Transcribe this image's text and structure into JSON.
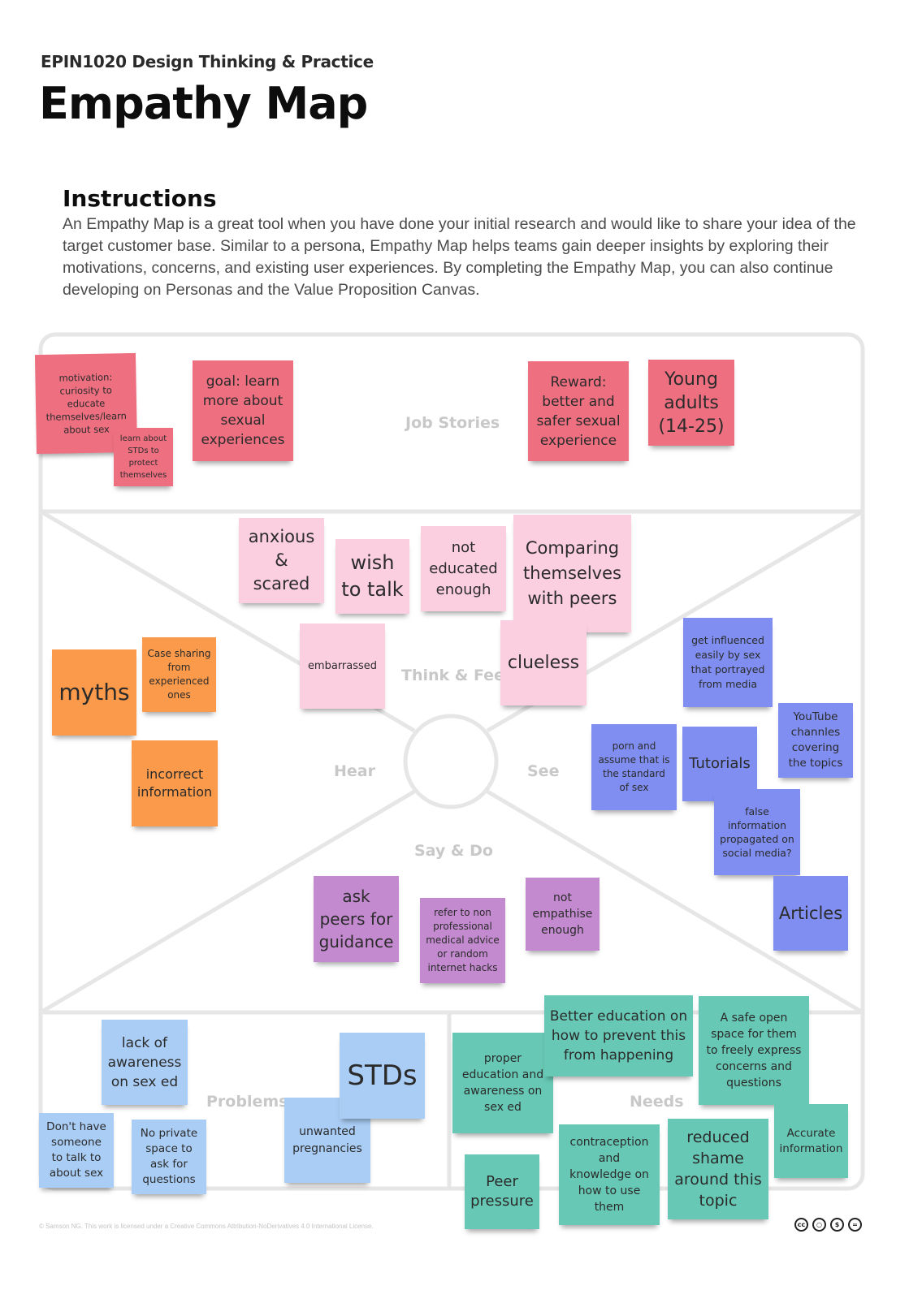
{
  "header": {
    "course": "EPIN1020 Design Thinking & Practice",
    "title": "Empathy Map"
  },
  "instructions": {
    "heading": "Instructions",
    "body": "An Empathy Map is a great tool when you have done your initial research and would like to share your idea of the target customer base. Similar to a persona, Empathy Map helps teams gain deeper insights by exploring their motivations, concerns, and existing user experiences. By completing the Empathy Map, you can also continue developing on Personas and the Value Proposition Canvas."
  },
  "sections": {
    "job_stories": "Job Stories",
    "think_feel": "Think & Feel",
    "hear": "Hear",
    "see": "See",
    "say_do": "Say & Do",
    "problems": "Problems",
    "needs": "Needs"
  },
  "notes": {
    "job_stories": [
      {
        "text": "motivation:\ncuriosity to\neducate\nthemselves/learn\nabout sex",
        "color": "#ee6f80"
      },
      {
        "text": "learn about\nSTDs to\nprotect\nthemselves",
        "color": "#ee6f80"
      },
      {
        "text": "goal: learn\nmore about\nsexual\nexperiences",
        "color": "#ee6f80"
      },
      {
        "text": "Reward:\nbetter and\nsafer sexual\nexperience",
        "color": "#ee6f80"
      },
      {
        "text": "Young\nadults\n(14-25)",
        "color": "#ee6f80"
      }
    ],
    "think_feel": [
      {
        "text": "anxious\n&\nscared",
        "color": "#fccfe0"
      },
      {
        "text": "wish\nto talk",
        "color": "#fccfe0"
      },
      {
        "text": "not\neducated\nenough",
        "color": "#fccfe0"
      },
      {
        "text": "Comparing\nthemselves\nwith peers",
        "color": "#fccfe0"
      },
      {
        "text": "embarrassed",
        "color": "#fccfe0"
      },
      {
        "text": "clueless",
        "color": "#fccfe0"
      }
    ],
    "hear": [
      {
        "text": "myths",
        "color": "#fb9a4a"
      },
      {
        "text": "Case sharing\nfrom\nexperienced\nones",
        "color": "#fb9a4a"
      },
      {
        "text": "incorrect\ninformation",
        "color": "#fb9a4a"
      }
    ],
    "see": [
      {
        "text": "get influenced\neasily by sex\nthat portrayed\nfrom media",
        "color": "#7f8ef0"
      },
      {
        "text": "YouTube\nchannles\ncovering\nthe topics",
        "color": "#7f8ef0"
      },
      {
        "text": "porn and\nassume that is\nthe standard\nof sex",
        "color": "#7f8ef0"
      },
      {
        "text": "Tutorials",
        "color": "#7f8ef0"
      },
      {
        "text": "false\ninformation\npropagated on\nsocial media?",
        "color": "#7f8ef0"
      },
      {
        "text": "Articles",
        "color": "#7f8ef0"
      }
    ],
    "say_do": [
      {
        "text": "ask\npeers for\nguidance",
        "color": "#c48ad0"
      },
      {
        "text": "refer to non\nprofessional\nmedical advice\nor random\ninternet hacks",
        "color": "#c48ad0"
      },
      {
        "text": "not\nempathise\nenough",
        "color": "#c48ad0"
      }
    ],
    "problems": [
      {
        "text": "lack of\nawareness\non sex ed",
        "color": "#aacdf5"
      },
      {
        "text": "STDs",
        "color": "#aacdf5"
      },
      {
        "text": "unwanted\npregnancies",
        "color": "#aacdf5"
      },
      {
        "text": "Don't have\nsomeone\nto talk to\nabout sex",
        "color": "#aacdf5"
      },
      {
        "text": "No private\nspace to\nask for\nquestions",
        "color": "#aacdf5"
      }
    ],
    "needs": [
      {
        "text": "Better education on\nhow to prevent this\nfrom happening",
        "color": "#67c9b5"
      },
      {
        "text": "A safe open\nspace for them\nto freely express\nconcerns and\nquestions",
        "color": "#67c9b5"
      },
      {
        "text": "proper\neducation and\nawareness on\nsex ed",
        "color": "#67c9b5"
      },
      {
        "text": "Accurate\ninformation",
        "color": "#67c9b5"
      },
      {
        "text": "Peer\npressure",
        "color": "#67c9b5"
      },
      {
        "text": "contraception\nand\nknowledge on\nhow to use\nthem",
        "color": "#67c9b5"
      },
      {
        "text": "reduced\nshame\naround this\ntopic",
        "color": "#67c9b5"
      }
    ]
  },
  "footer": {
    "license": "© Samson NG. This work is licensed under a Creative Commons Attribution-NoDerivatives 4.0 International License.",
    "cc_icons": [
      "cc-icon",
      "by-icon",
      "nc-icon",
      "nd-icon"
    ]
  }
}
